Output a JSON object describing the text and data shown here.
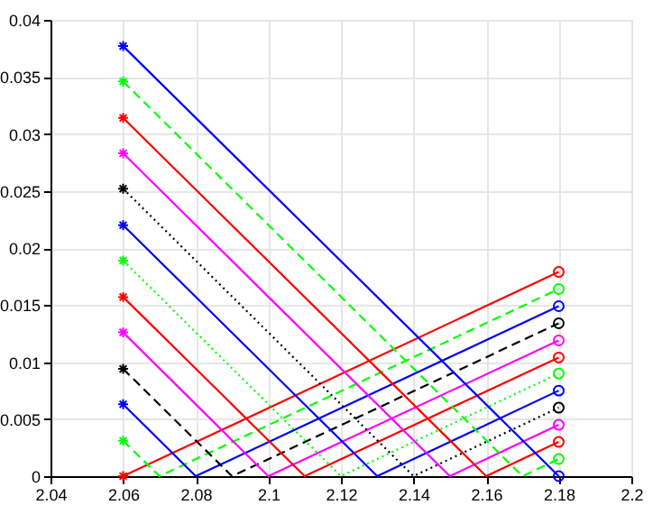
{
  "chart_data": {
    "type": "line",
    "xlim": [
      2.04,
      2.2
    ],
    "xticks": [
      2.04,
      2.06,
      2.08,
      2.1,
      2.12,
      2.14,
      2.16,
      2.18,
      2.2
    ],
    "ylim": [
      0,
      0.04
    ],
    "yticks": [
      0,
      0.005,
      0.01,
      0.015,
      0.02,
      0.025,
      0.03,
      0.035,
      0.04
    ],
    "grid": true,
    "legend": false,
    "marker": "none",
    "series": [
      {
        "color": "#ff0000",
        "line_style": "solid",
        "x": [
          2.06,
          2.06,
          2.18
        ],
        "values": [
          0,
          0,
          0.0179
        ]
      },
      {
        "color": "#00ff00",
        "line_style": "dashed",
        "x": [
          2.06,
          2.07,
          2.18
        ],
        "values": [
          0.0031,
          0,
          0.0164
        ]
      },
      {
        "color": "#0000ff",
        "line_style": "solid",
        "x": [
          2.06,
          2.08,
          2.18
        ],
        "values": [
          0.0063,
          0,
          0.0149
        ]
      },
      {
        "color": "#000000",
        "line_style": "dashed",
        "x": [
          2.06,
          2.09,
          2.18
        ],
        "values": [
          0.0094,
          0,
          0.0134
        ]
      },
      {
        "color": "#ff00ff",
        "line_style": "solid",
        "x": [
          2.06,
          2.1,
          2.18
        ],
        "values": [
          0.0126,
          0,
          0.0119
        ]
      },
      {
        "color": "#ff0000",
        "line_style": "solid",
        "x": [
          2.06,
          2.11,
          2.18
        ],
        "values": [
          0.0157,
          0,
          0.0104
        ]
      },
      {
        "color": "#00ff00",
        "line_style": "dotted",
        "x": [
          2.06,
          2.12,
          2.18
        ],
        "values": [
          0.0189,
          0,
          0.009
        ]
      },
      {
        "color": "#0000ff",
        "line_style": "solid",
        "x": [
          2.06,
          2.13,
          2.18
        ],
        "values": [
          0.022,
          0,
          0.0075
        ]
      },
      {
        "color": "#000000",
        "line_style": "dotted",
        "x": [
          2.06,
          2.14,
          2.18
        ],
        "values": [
          0.0252,
          0,
          0.006
        ]
      },
      {
        "color": "#ff00ff",
        "line_style": "solid",
        "x": [
          2.06,
          2.15,
          2.18
        ],
        "values": [
          0.0283,
          0,
          0.0045
        ]
      },
      {
        "color": "#ff0000",
        "line_style": "solid",
        "x": [
          2.06,
          2.16,
          2.18
        ],
        "values": [
          0.0314,
          0,
          0.003
        ]
      },
      {
        "color": "#00ff00",
        "line_style": "dashed",
        "x": [
          2.06,
          2.17,
          2.18
        ],
        "values": [
          0.0346,
          0,
          0.0015
        ]
      },
      {
        "color": "#0000ff",
        "line_style": "solid",
        "x": [
          2.06,
          2.18,
          2.18
        ],
        "values": [
          0.0377,
          0,
          0
        ]
      },
      {
        "type": "scatter",
        "marker": "cross",
        "x": [
          2.06,
          2.06,
          2.06,
          2.06,
          2.06,
          2.06,
          2.06,
          2.06,
          2.06,
          2.06,
          2.06,
          2.06,
          2.06
        ],
        "values": [
          0,
          0.0031,
          0.0063,
          0.0094,
          0.0126,
          0.0157,
          0.0189,
          0.022,
          0.0252,
          0.0283,
          0.0314,
          0.0346,
          0.0377
        ],
        "colors": [
          "#ff0000",
          "#00ff00",
          "#0000ff",
          "#000000",
          "#ff00ff",
          "#ff0000",
          "#00ff00",
          "#0000ff",
          "#000000",
          "#ff00ff",
          "#ff0000",
          "#00ff00",
          "#0000ff"
        ]
      },
      {
        "type": "scatter",
        "marker": "circle",
        "x": [
          2.18,
          2.18,
          2.18,
          2.18,
          2.18,
          2.18,
          2.18,
          2.18,
          2.18,
          2.18,
          2.18,
          2.18,
          2.18
        ],
        "values": [
          0.0179,
          0.0164,
          0.0149,
          0.0134,
          0.0119,
          0.0104,
          0.009,
          0.0075,
          0.006,
          0.0045,
          0.003,
          0.0015,
          0
        ],
        "colors": [
          "#ff0000",
          "#00ff00",
          "#0000ff",
          "#000000",
          "#ff00ff",
          "#ff0000",
          "#00ff00",
          "#0000ff",
          "#000000",
          "#ff00ff",
          "#ff0000",
          "#00ff00",
          "#0000ff"
        ]
      }
    ]
  }
}
